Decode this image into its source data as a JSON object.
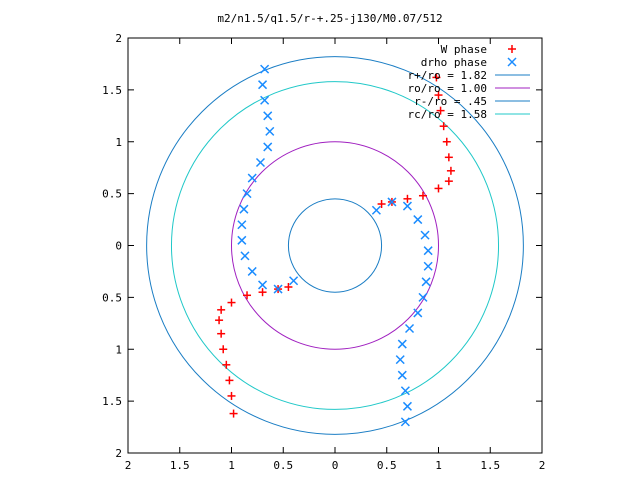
{
  "chart_data": {
    "type": "scatter",
    "title": "m2/n1.5/q1.5/r-+.25-j130/M0.07/512",
    "xlim": [
      -2,
      2
    ],
    "ylim": [
      -2,
      2
    ],
    "x_tick_values": [
      -2,
      -1.5,
      -1,
      -0.5,
      0,
      0.5,
      1,
      1.5,
      2
    ],
    "y_tick_values": [
      -2,
      -1.5,
      -1,
      -0.5,
      0,
      0.5,
      1,
      1.5,
      2
    ],
    "x_tick_labels": [
      "2",
      "1.5",
      "1",
      "0.5",
      "0",
      "0.5",
      "1",
      "1.5",
      "2"
    ],
    "y_tick_labels": [
      "2",
      "1.5",
      "1",
      "0.5",
      "0",
      "0.5",
      "1",
      "1.5",
      "2"
    ],
    "grid": false,
    "legend_position": "top-right",
    "series": [
      {
        "name": "W phase",
        "marker": "+",
        "color": "#ff0000",
        "points": [
          [
            0.98,
            1.62
          ],
          [
            1.0,
            1.45
          ],
          [
            1.02,
            1.3
          ],
          [
            1.05,
            1.15
          ],
          [
            1.08,
            1.0
          ],
          [
            1.1,
            0.85
          ],
          [
            1.12,
            0.72
          ],
          [
            1.1,
            0.62
          ],
          [
            1.0,
            0.55
          ],
          [
            0.85,
            0.48
          ],
          [
            0.7,
            0.45
          ],
          [
            0.55,
            0.42
          ],
          [
            0.45,
            0.4
          ],
          [
            -0.98,
            -1.62
          ],
          [
            -1.0,
            -1.45
          ],
          [
            -1.02,
            -1.3
          ],
          [
            -1.05,
            -1.15
          ],
          [
            -1.08,
            -1.0
          ],
          [
            -1.1,
            -0.85
          ],
          [
            -1.12,
            -0.72
          ],
          [
            -1.1,
            -0.62
          ],
          [
            -1.0,
            -0.55
          ],
          [
            -0.85,
            -0.48
          ],
          [
            -0.7,
            -0.45
          ],
          [
            -0.55,
            -0.42
          ],
          [
            -0.45,
            -0.4
          ]
        ]
      },
      {
        "name": "drho phase",
        "marker": "x",
        "color": "#1a8cff",
        "points": [
          [
            -0.68,
            1.7
          ],
          [
            -0.7,
            1.55
          ],
          [
            -0.68,
            1.4
          ],
          [
            -0.65,
            1.25
          ],
          [
            -0.63,
            1.1
          ],
          [
            -0.65,
            0.95
          ],
          [
            -0.72,
            0.8
          ],
          [
            -0.8,
            0.65
          ],
          [
            -0.85,
            0.5
          ],
          [
            -0.88,
            0.35
          ],
          [
            -0.9,
            0.2
          ],
          [
            -0.9,
            0.05
          ],
          [
            -0.87,
            -0.1
          ],
          [
            -0.8,
            -0.25
          ],
          [
            -0.7,
            -0.38
          ],
          [
            -0.55,
            -0.42
          ],
          [
            -0.4,
            -0.34
          ],
          [
            0.68,
            -1.7
          ],
          [
            0.7,
            -1.55
          ],
          [
            0.68,
            -1.4
          ],
          [
            0.65,
            -1.25
          ],
          [
            0.63,
            -1.1
          ],
          [
            0.65,
            -0.95
          ],
          [
            0.72,
            -0.8
          ],
          [
            0.8,
            -0.65
          ],
          [
            0.85,
            -0.5
          ],
          [
            0.88,
            -0.35
          ],
          [
            0.9,
            -0.2
          ],
          [
            0.9,
            -0.05
          ],
          [
            0.87,
            0.1
          ],
          [
            0.8,
            0.25
          ],
          [
            0.7,
            0.38
          ],
          [
            0.55,
            0.42
          ],
          [
            0.4,
            0.34
          ]
        ]
      }
    ],
    "circles": [
      {
        "label": "r+/ro = 1.82",
        "radius": 1.82,
        "color": "#1a7dc4"
      },
      {
        "label": "ro/ro = 1.00",
        "radius": 1.0,
        "color": "#a020c0"
      },
      {
        "label": "r-/ro = .45",
        "radius": 0.45,
        "color": "#1a7dc4"
      },
      {
        "label": "rc/ro = 1.58",
        "radius": 1.58,
        "color": "#20c8c8"
      }
    ]
  }
}
